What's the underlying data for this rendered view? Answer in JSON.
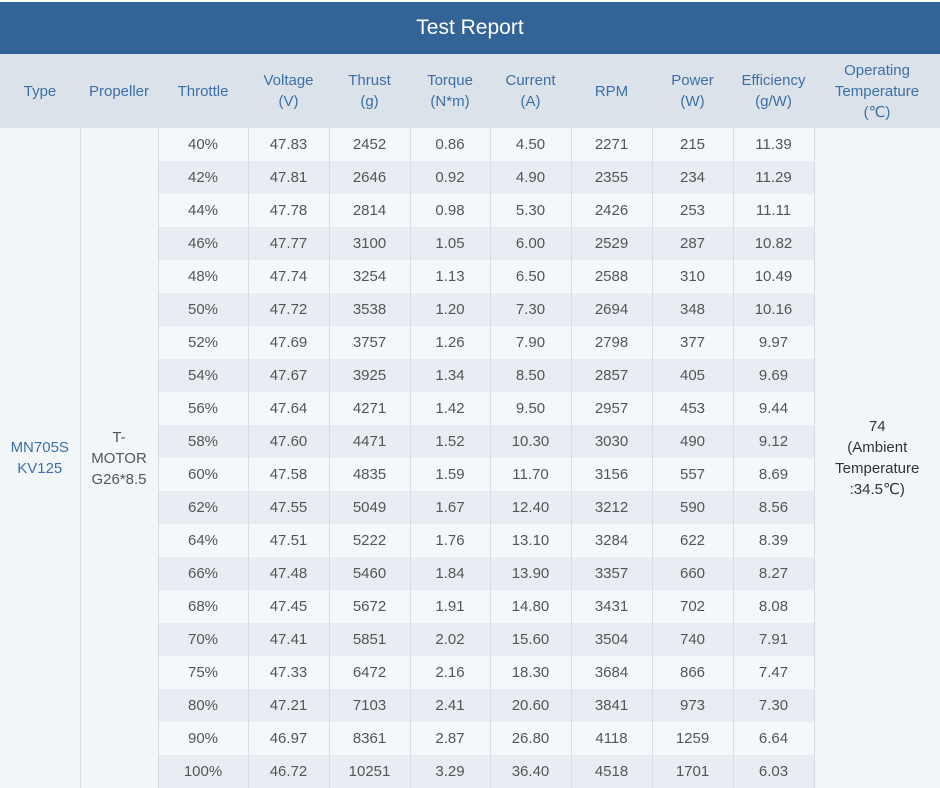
{
  "title": "Test Report",
  "headers": [
    [
      "Type"
    ],
    [
      "Propeller"
    ],
    [
      "Throttle"
    ],
    [
      "Voltage",
      "(V)"
    ],
    [
      "Thrust",
      "(g)"
    ],
    [
      "Torque",
      "(N*m)"
    ],
    [
      "Current",
      "(A)"
    ],
    [
      "RPM"
    ],
    [
      "Power",
      "(W)"
    ],
    [
      "Efficiency",
      "(g/W)"
    ],
    [
      "Operating",
      "Temperature",
      "(℃)"
    ]
  ],
  "type": [
    "MN705S",
    "KV125"
  ],
  "propeller": [
    "T-",
    "MOTOR",
    "G26*8.5"
  ],
  "temperature": [
    "74",
    "(Ambient",
    "Temperature",
    ":34.5℃)"
  ],
  "rows": [
    [
      "40%",
      "47.83",
      "2452",
      "0.86",
      "4.50",
      "2271",
      "215",
      "11.39"
    ],
    [
      "42%",
      "47.81",
      "2646",
      "0.92",
      "4.90",
      "2355",
      "234",
      "11.29"
    ],
    [
      "44%",
      "47.78",
      "2814",
      "0.98",
      "5.30",
      "2426",
      "253",
      "11.11"
    ],
    [
      "46%",
      "47.77",
      "3100",
      "1.05",
      "6.00",
      "2529",
      "287",
      "10.82"
    ],
    [
      "48%",
      "47.74",
      "3254",
      "1.13",
      "6.50",
      "2588",
      "310",
      "10.49"
    ],
    [
      "50%",
      "47.72",
      "3538",
      "1.20",
      "7.30",
      "2694",
      "348",
      "10.16"
    ],
    [
      "52%",
      "47.69",
      "3757",
      "1.26",
      "7.90",
      "2798",
      "377",
      "9.97"
    ],
    [
      "54%",
      "47.67",
      "3925",
      "1.34",
      "8.50",
      "2857",
      "405",
      "9.69"
    ],
    [
      "56%",
      "47.64",
      "4271",
      "1.42",
      "9.50",
      "2957",
      "453",
      "9.44"
    ],
    [
      "58%",
      "47.60",
      "4471",
      "1.52",
      "10.30",
      "3030",
      "490",
      "9.12"
    ],
    [
      "60%",
      "47.58",
      "4835",
      "1.59",
      "11.70",
      "3156",
      "557",
      "8.69"
    ],
    [
      "62%",
      "47.55",
      "5049",
      "1.67",
      "12.40",
      "3212",
      "590",
      "8.56"
    ],
    [
      "64%",
      "47.51",
      "5222",
      "1.76",
      "13.10",
      "3284",
      "622",
      "8.39"
    ],
    [
      "66%",
      "47.48",
      "5460",
      "1.84",
      "13.90",
      "3357",
      "660",
      "8.27"
    ],
    [
      "68%",
      "47.45",
      "5672",
      "1.91",
      "14.80",
      "3431",
      "702",
      "8.08"
    ],
    [
      "70%",
      "47.41",
      "5851",
      "2.02",
      "15.60",
      "3504",
      "740",
      "7.91"
    ],
    [
      "75%",
      "47.33",
      "6472",
      "2.16",
      "18.30",
      "3684",
      "866",
      "7.47"
    ],
    [
      "80%",
      "47.21",
      "7103",
      "2.41",
      "20.60",
      "3841",
      "973",
      "7.30"
    ],
    [
      "90%",
      "46.97",
      "8361",
      "2.87",
      "26.80",
      "4118",
      "1259",
      "6.64"
    ],
    [
      "100%",
      "46.72",
      "10251",
      "3.29",
      "36.40",
      "4518",
      "1701",
      "6.03"
    ]
  ]
}
